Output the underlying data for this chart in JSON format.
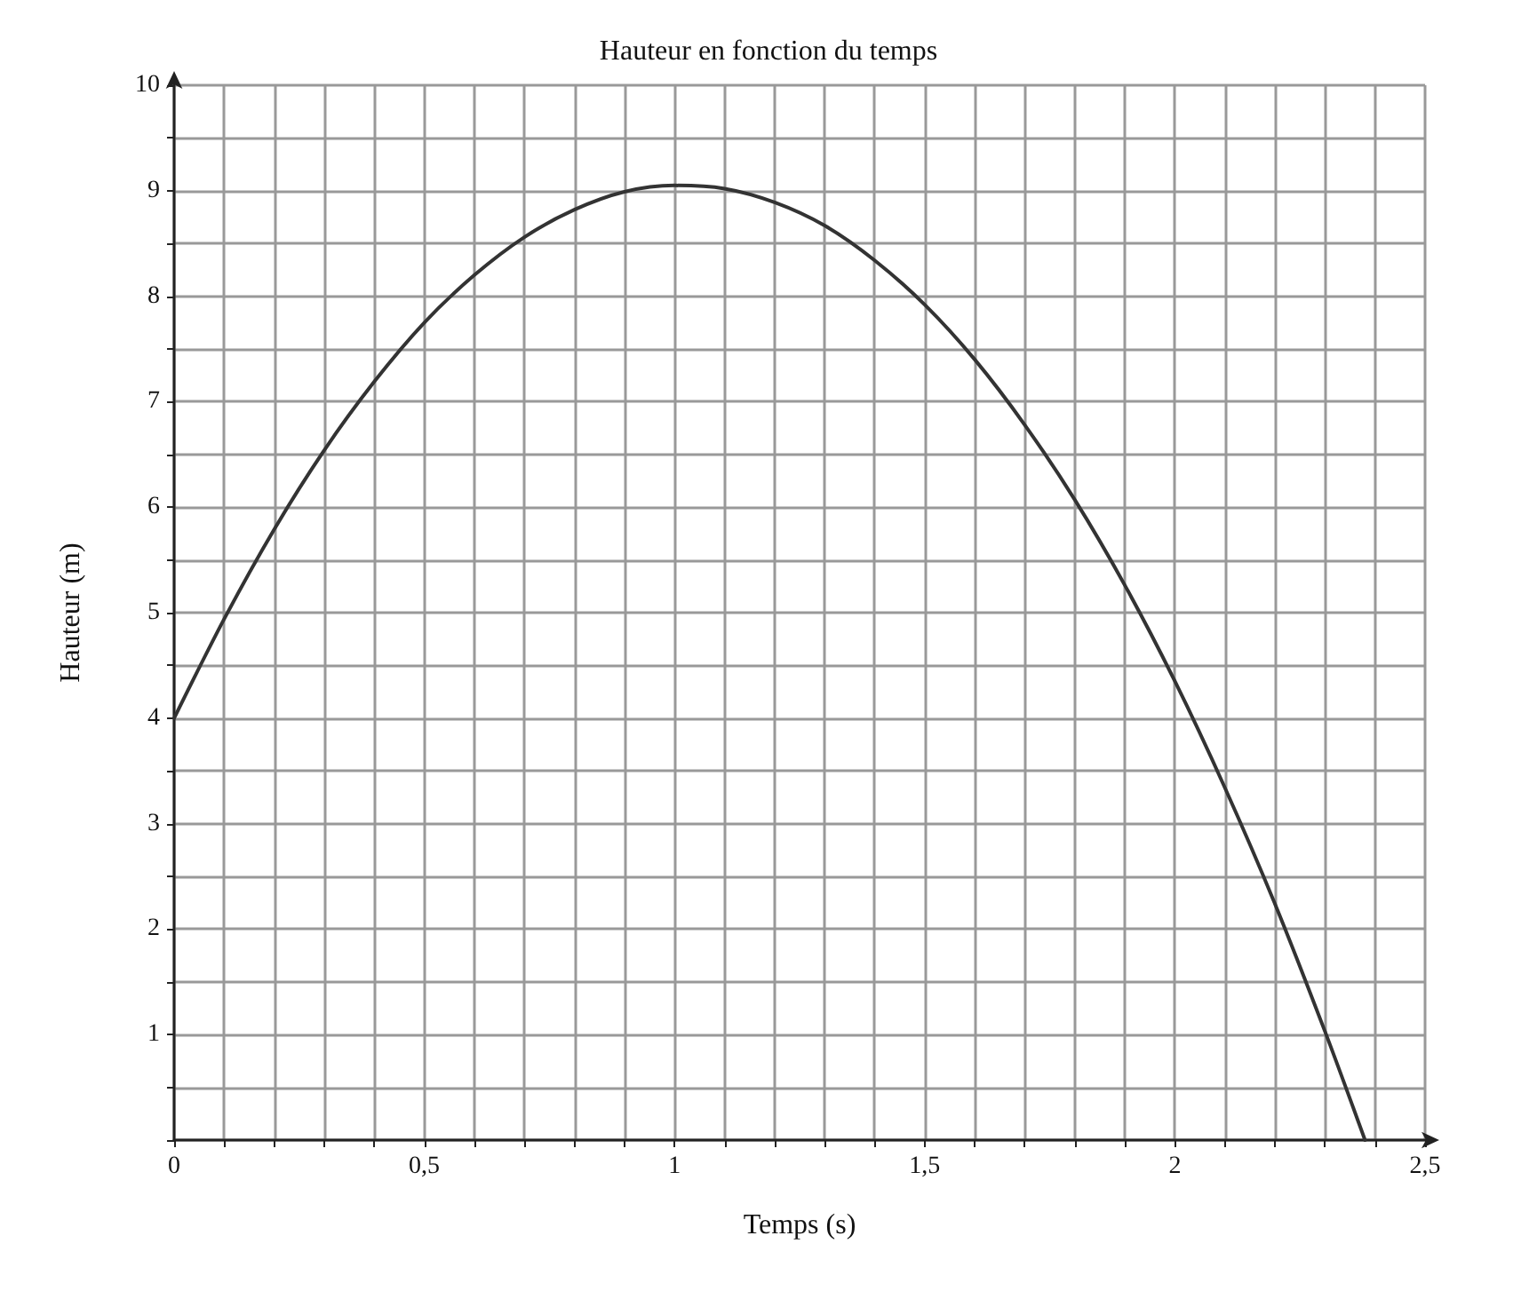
{
  "chart_data": {
    "type": "line",
    "title": "Hauteur en fonction du temps",
    "xlabel": "Temps (s)",
    "ylabel": "Hauteur (m)",
    "x": [
      0,
      0.1,
      0.2,
      0.3,
      0.4,
      0.5,
      0.6,
      0.7,
      0.8,
      0.9,
      1.0,
      1.1,
      1.2,
      1.3,
      1.4,
      1.5,
      1.6,
      1.7,
      1.8,
      1.9,
      2.0,
      2.1,
      2.2,
      2.3,
      2.38
    ],
    "series": [
      {
        "color": "#333333",
        "values": [
          4,
          4.94,
          5.79,
          6.54,
          7.19,
          7.75,
          8.2,
          8.56,
          8.82,
          8.99,
          9.05,
          9.02,
          8.89,
          8.67,
          8.34,
          7.92,
          7.4,
          6.78,
          6.07,
          5.26,
          4.35,
          3.34,
          2.24,
          1.03,
          0
        ]
      }
    ],
    "xlim": [
      0,
      2.5
    ],
    "ylim": [
      0,
      10
    ],
    "xticks": [
      0,
      {
        "value": 0.1,
        "label": null
      },
      {
        "value": 0.2,
        "label": null
      },
      {
        "value": 0.3,
        "label": null
      },
      {
        "value": 0.4,
        "label": null
      },
      {
        "value": 0.5,
        "label": "0,5"
      },
      {
        "value": 0.6,
        "label": null
      },
      {
        "value": 0.7,
        "label": null
      },
      {
        "value": 0.8,
        "label": null
      },
      {
        "value": 0.9,
        "label": null
      },
      1,
      {
        "value": 1.1,
        "label": null
      },
      {
        "value": 1.2,
        "label": null
      },
      {
        "value": 1.3,
        "label": null
      },
      {
        "value": 1.4,
        "label": null
      },
      {
        "value": 1.5,
        "label": "1,5"
      },
      {
        "value": 1.6,
        "label": null
      },
      {
        "value": 1.7,
        "label": null
      },
      {
        "value": 1.8,
        "label": null
      },
      {
        "value": 1.9,
        "label": null
      },
      2,
      {
        "value": 2.1,
        "label": null
      },
      {
        "value": 2.2,
        "label": null
      },
      {
        "value": 2.3,
        "label": null
      },
      {
        "value": 2.4,
        "label": null
      },
      {
        "value": 2.5,
        "label": "2,5"
      }
    ],
    "yticks": [
      {
        "value": 0,
        "label": null
      },
      {
        "value": 0.5,
        "label": null
      },
      1,
      {
        "value": 1.5,
        "label": null
      },
      2,
      {
        "value": 2.5,
        "label": null
      },
      3,
      {
        "value": 3.5,
        "label": null
      },
      4,
      {
        "value": 4.5,
        "label": null
      },
      5,
      {
        "value": 5.5,
        "label": null
      },
      6,
      {
        "value": 6.5,
        "label": null
      },
      7,
      {
        "value": 7.5,
        "label": null
      },
      8,
      {
        "value": 8.5,
        "label": null
      },
      9,
      {
        "value": 9.5,
        "label": null
      },
      10
    ],
    "grid": true,
    "marker": "none",
    "line_style": "solid"
  }
}
